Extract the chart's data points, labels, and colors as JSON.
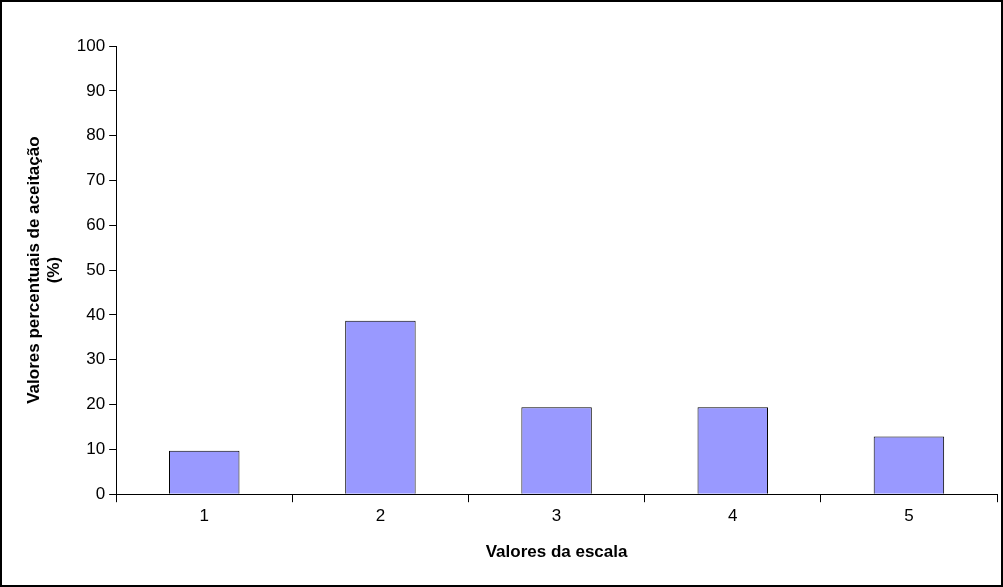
{
  "chart_data": {
    "type": "bar",
    "xlabel": "Valores da escala",
    "ylabel": "Valores percentuais de aceitação\n(%)",
    "categories": [
      "1",
      "2",
      "3",
      "4",
      "5"
    ],
    "values": [
      9.7,
      38.7,
      19.4,
      19.4,
      12.9
    ],
    "color": "#9999ff",
    "ylim": [
      0,
      100
    ],
    "yticks": [
      0,
      10,
      20,
      30,
      40,
      50,
      60,
      70,
      80,
      90,
      100
    ],
    "grid": false,
    "legend": false
  }
}
